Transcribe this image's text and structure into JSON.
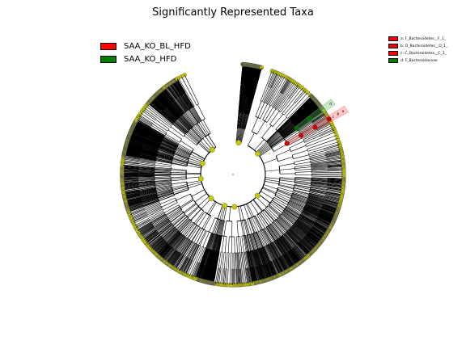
{
  "title": "Significantly Represented Taxa",
  "legend": [
    {
      "label": "SAA_KO_BL_HFD",
      "color": "#ff0000"
    },
    {
      "label": "SAA_KO_HFD",
      "color": "#008000"
    }
  ],
  "clade_key": [
    {
      "label": "a: F_Bacteroidetes__F_1_",
      "color": "#ff0000"
    },
    {
      "label": "b: O_Bacteroidetes__O_1_",
      "color": "#ff0000"
    },
    {
      "label": "c: C_Bacteroidetes__C_1_",
      "color": "#ff0000"
    },
    {
      "label": "d: F_Bacteroidaceae",
      "color": "#008000"
    }
  ],
  "cladogram": {
    "node_color": "#c8c800",
    "highlights": [
      {
        "letter": "c",
        "group": "SAA_KO_BL_HFD"
      },
      {
        "letter": "b",
        "group": "SAA_KO_BL_HFD"
      },
      {
        "letter": "a",
        "group": "SAA_KO_BL_HFD"
      },
      {
        "letter": "d",
        "group": "SAA_KO_HFD"
      }
    ]
  }
}
